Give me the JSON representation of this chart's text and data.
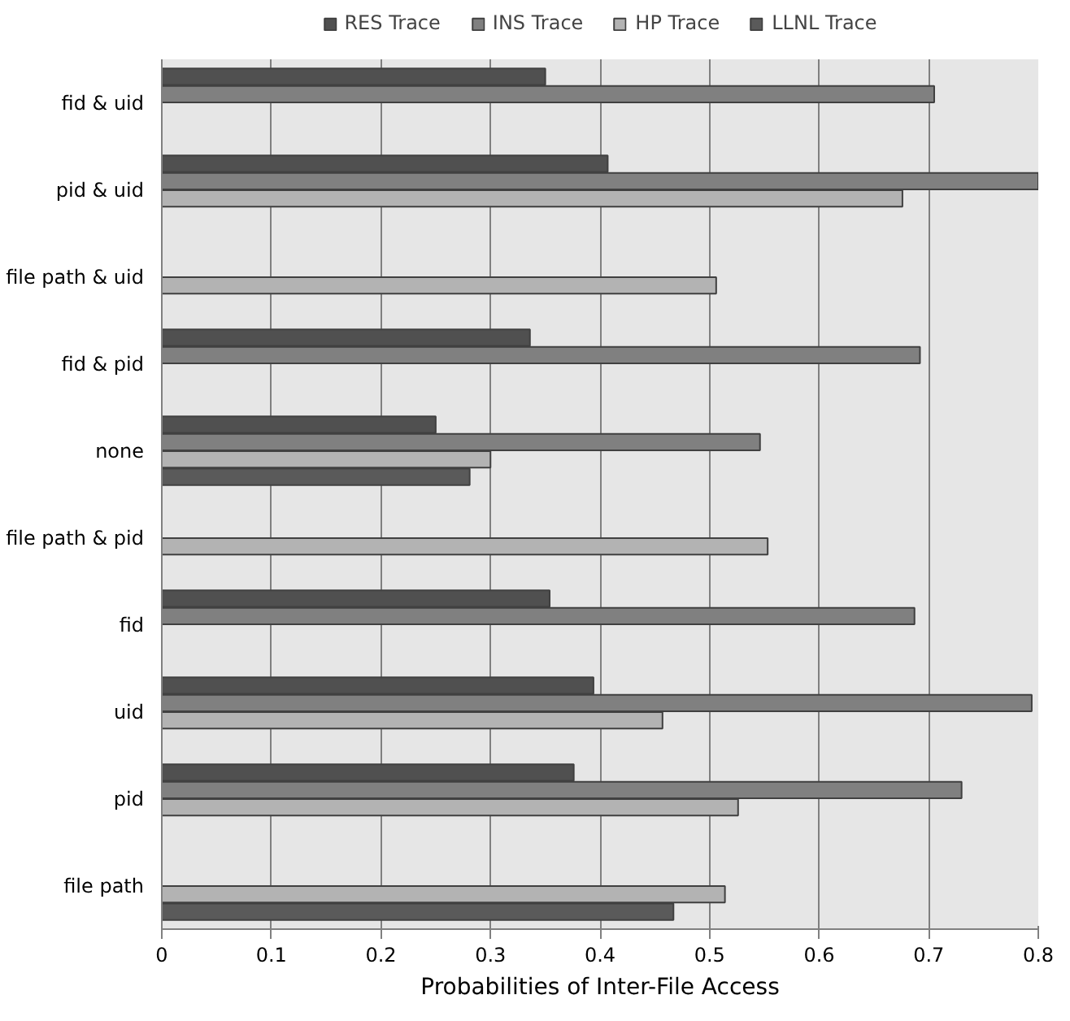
{
  "chart_data": {
    "type": "bar",
    "orientation": "horizontal",
    "xlabel": "Probabilities of Inter-File Access",
    "categories": [
      "fid & uid",
      "pid & uid",
      "file path & uid",
      "fid & pid",
      "none",
      "file path & pid",
      "fid",
      "uid",
      "pid",
      "file path"
    ],
    "series": [
      {
        "name": "RES Trace",
        "color": "#505050",
        "values": [
          0.35,
          0.407,
          null,
          0.336,
          0.25,
          null,
          0.354,
          0.394,
          0.376,
          null
        ]
      },
      {
        "name": "INS Trace",
        "color": "#808080",
        "values": [
          0.705,
          0.8,
          null,
          0.692,
          0.546,
          null,
          0.687,
          0.794,
          0.73,
          null
        ]
      },
      {
        "name": "HP Trace",
        "color": "#b3b3b3",
        "values": [
          null,
          0.676,
          0.506,
          null,
          0.3,
          0.553,
          null,
          0.457,
          0.526,
          0.514
        ]
      },
      {
        "name": "LLNL Trace",
        "color": "#5a5a5a",
        "values": [
          null,
          null,
          null,
          null,
          0.281,
          null,
          null,
          null,
          null,
          0.467
        ]
      }
    ],
    "xlim": [
      0,
      0.8
    ],
    "xticks": [
      0,
      0.1,
      0.2,
      0.3,
      0.4,
      0.5,
      0.6,
      0.7,
      0.8
    ],
    "grid": "x",
    "legend": "top"
  }
}
